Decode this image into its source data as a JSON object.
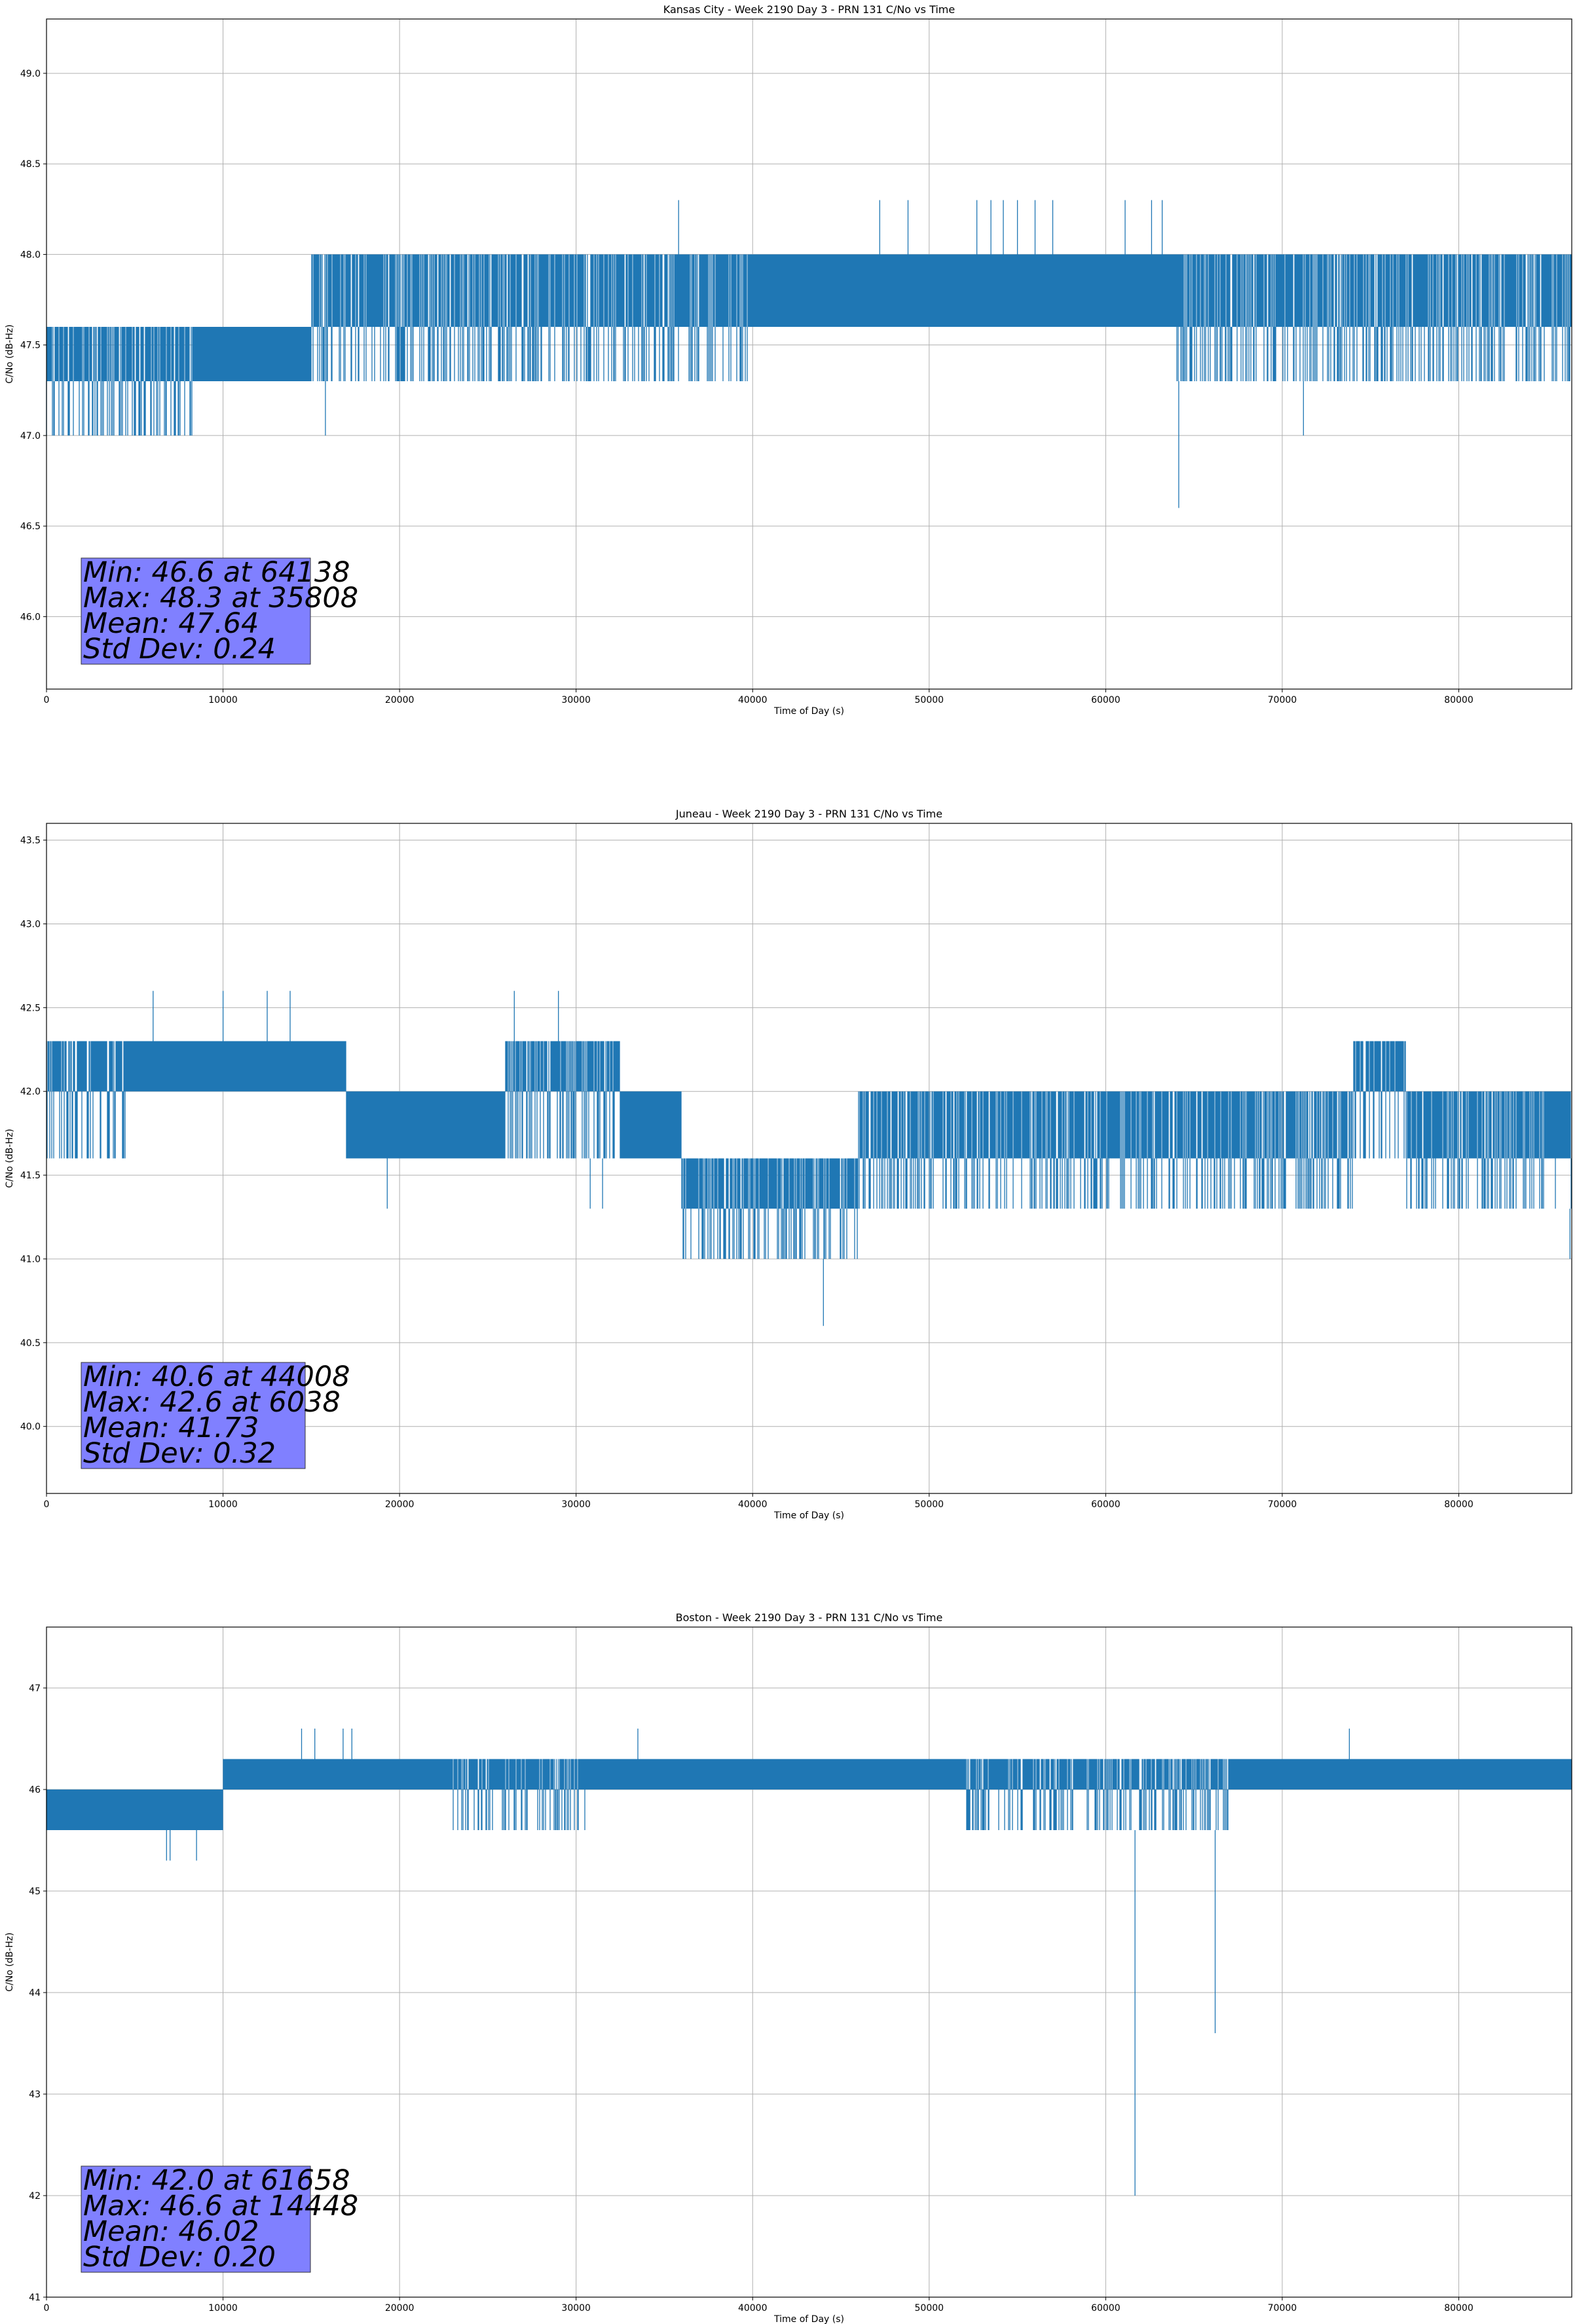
{
  "chart_data": [
    {
      "type": "line",
      "title": "Kansas City - Week 2190 Day 3 - PRN 131 C/No vs Time",
      "xlabel": "Time of Day (s)",
      "ylabel": "C/No (dB-Hz)",
      "xlim": [
        0,
        86400
      ],
      "ylim": [
        45.6,
        49.3
      ],
      "xticks": [
        0,
        10000,
        20000,
        30000,
        40000,
        50000,
        60000,
        70000,
        80000
      ],
      "yticks": [
        46.0,
        46.5,
        47.0,
        47.5,
        48.0,
        48.5,
        49.0
      ],
      "ytick_decimals": 1,
      "grid": true,
      "color": "#1f77b4",
      "stats_lines": [
        "Min: 46.6 at 64138",
        "Max: 48.3 at 35808",
        "Mean: 47.64",
        "Std Dev: 0.24"
      ],
      "quant": 0.3,
      "segments": [
        {
          "from": 0,
          "to": 8500,
          "levels": [
            47.0,
            47.3,
            47.6
          ]
        },
        {
          "from": 8500,
          "to": 15000,
          "levels": [
            47.3,
            47.6
          ]
        },
        {
          "from": 15000,
          "to": 26000,
          "levels": [
            47.3,
            47.6,
            48.0
          ]
        },
        {
          "from": 26000,
          "to": 40000,
          "levels": [
            47.3,
            47.6,
            48.0
          ]
        },
        {
          "from": 40000,
          "to": 64000,
          "levels": [
            47.6,
            48.0
          ]
        },
        {
          "from": 64000,
          "to": 76000,
          "levels": [
            47.3,
            47.6,
            48.0
          ]
        },
        {
          "from": 76000,
          "to": 86400,
          "levels": [
            47.3,
            47.6,
            48.0
          ]
        }
      ],
      "spikes": [
        [
          64138,
          46.6
        ],
        [
          35808,
          48.3
        ],
        [
          15800,
          47.0
        ],
        [
          71200,
          47.0
        ],
        [
          47200,
          48.3
        ],
        [
          48800,
          48.3
        ],
        [
          52700,
          48.3
        ],
        [
          53500,
          48.3
        ],
        [
          54200,
          48.3
        ],
        [
          55000,
          48.3
        ],
        [
          56000,
          48.3
        ],
        [
          57000,
          48.3
        ],
        [
          61100,
          48.3
        ],
        [
          62600,
          48.3
        ],
        [
          63200,
          48.3
        ]
      ]
    },
    {
      "type": "line",
      "title": "Juneau - Week 2190 Day 3 - PRN 131 C/No vs Time",
      "xlabel": "Time of Day (s)",
      "ylabel": "C/No (dB-Hz)",
      "xlim": [
        0,
        86400
      ],
      "ylim": [
        39.6,
        43.6
      ],
      "xticks": [
        0,
        10000,
        20000,
        30000,
        40000,
        50000,
        60000,
        70000,
        80000
      ],
      "yticks": [
        40.0,
        40.5,
        41.0,
        41.5,
        42.0,
        42.5,
        43.0,
        43.5
      ],
      "ytick_decimals": 1,
      "grid": true,
      "color": "#1f77b4",
      "stats_lines": [
        "Min: 40.6 at 44008",
        "Max: 42.6 at 6038",
        "Mean: 41.73",
        "Std Dev: 0.32"
      ],
      "quant": 0.3,
      "segments": [
        {
          "from": 0,
          "to": 4500,
          "levels": [
            41.6,
            42.0,
            42.3
          ]
        },
        {
          "from": 4500,
          "to": 17000,
          "levels": [
            42.0,
            42.3
          ]
        },
        {
          "from": 17000,
          "to": 26000,
          "levels": [
            41.6,
            42.0
          ]
        },
        {
          "from": 26000,
          "to": 32500,
          "levels": [
            41.6,
            42.0,
            42.3
          ]
        },
        {
          "from": 32500,
          "to": 36000,
          "levels": [
            41.6,
            42.0
          ]
        },
        {
          "from": 36000,
          "to": 46000,
          "levels": [
            41.0,
            41.3,
            41.6
          ]
        },
        {
          "from": 46000,
          "to": 74000,
          "levels": [
            41.3,
            41.6,
            42.0
          ]
        },
        {
          "from": 74000,
          "to": 77000,
          "levels": [
            41.6,
            42.0,
            42.3
          ]
        },
        {
          "from": 77000,
          "to": 86400,
          "levels": [
            41.3,
            41.6,
            42.0
          ]
        }
      ],
      "spikes": [
        [
          44008,
          40.6
        ],
        [
          6038,
          42.6
        ],
        [
          10000,
          42.6
        ],
        [
          12500,
          42.6
        ],
        [
          13800,
          42.6
        ],
        [
          26500,
          42.6
        ],
        [
          29000,
          42.6
        ],
        [
          19300,
          41.3
        ],
        [
          31500,
          41.3
        ],
        [
          30800,
          41.3
        ],
        [
          86300,
          41.0
        ]
      ]
    },
    {
      "type": "line",
      "title": "Boston - Week 2190 Day 3 - PRN 131 C/No vs Time",
      "xlabel": "Time of Day (s)",
      "ylabel": "C/No (dB-Hz)",
      "xlim": [
        0,
        86400
      ],
      "ylim": [
        41.0,
        47.6
      ],
      "xticks": [
        0,
        10000,
        20000,
        30000,
        40000,
        50000,
        60000,
        70000,
        80000
      ],
      "yticks": [
        41,
        42,
        43,
        44,
        45,
        46,
        47
      ],
      "ytick_decimals": 0,
      "grid": true,
      "color": "#1f77b4",
      "stats_lines": [
        "Min: 42.0 at 61658",
        "Max: 46.6 at 14448",
        "Mean: 46.02",
        "Std Dev: 0.20"
      ],
      "quant": 0.3,
      "segments": [
        {
          "from": 0,
          "to": 10000,
          "levels": [
            45.6,
            46.0
          ]
        },
        {
          "from": 10000,
          "to": 23000,
          "levels": [
            46.0,
            46.3
          ]
        },
        {
          "from": 23000,
          "to": 31000,
          "levels": [
            45.6,
            46.0,
            46.3
          ]
        },
        {
          "from": 31000,
          "to": 52000,
          "levels": [
            46.0,
            46.3
          ]
        },
        {
          "from": 52000,
          "to": 67000,
          "levels": [
            45.6,
            46.0,
            46.3
          ]
        },
        {
          "from": 67000,
          "to": 86400,
          "levels": [
            46.0,
            46.3
          ]
        }
      ],
      "spikes": [
        [
          61658,
          42.0
        ],
        [
          66200,
          43.6
        ],
        [
          14448,
          46.6
        ],
        [
          15200,
          46.6
        ],
        [
          16800,
          46.6
        ],
        [
          17300,
          46.6
        ],
        [
          33500,
          46.6
        ],
        [
          73800,
          46.6
        ],
        [
          7000,
          45.3
        ],
        [
          8500,
          45.3
        ],
        [
          6800,
          45.3
        ]
      ]
    }
  ]
}
